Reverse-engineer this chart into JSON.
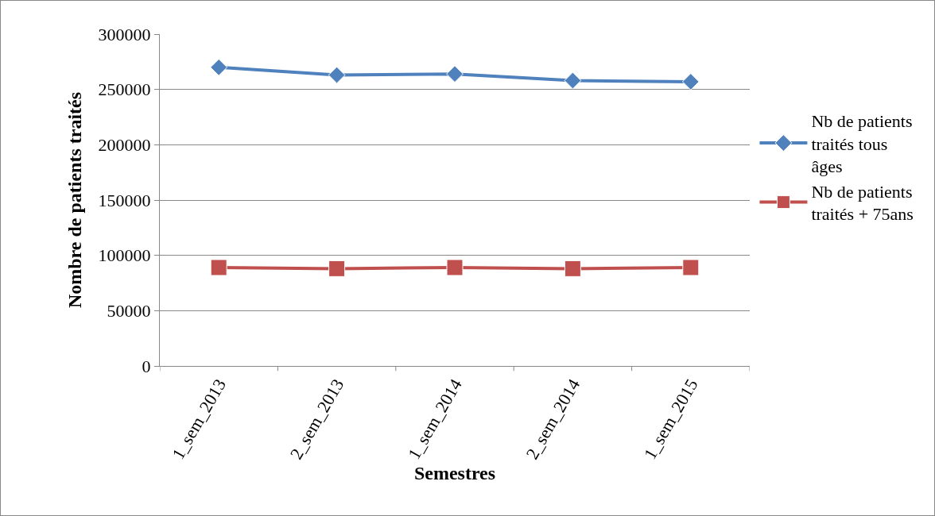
{
  "chart_data": {
    "type": "line",
    "xlabel": "Semestres",
    "ylabel": "Nombre de patients traités",
    "categories": [
      "1_sem_2013",
      "2_sem_2013",
      "1_sem_2014",
      "2_sem_2014",
      "1_sem_2015"
    ],
    "series": [
      {
        "name": "Nb de patients traités tous âges",
        "color": "#4f81bd",
        "marker": "diamond",
        "values": [
          270000,
          263000,
          264000,
          258000,
          257000
        ]
      },
      {
        "name": "Nb de patients traités + 75ans",
        "color": "#c0504d",
        "marker": "square",
        "values": [
          89000,
          88000,
          89000,
          88000,
          89000
        ]
      }
    ],
    "ylim": [
      0,
      300000
    ],
    "yticks": [
      0,
      50000,
      100000,
      150000,
      200000,
      250000,
      300000
    ],
    "grid": "y",
    "legend": "right",
    "line_style": "solid"
  }
}
